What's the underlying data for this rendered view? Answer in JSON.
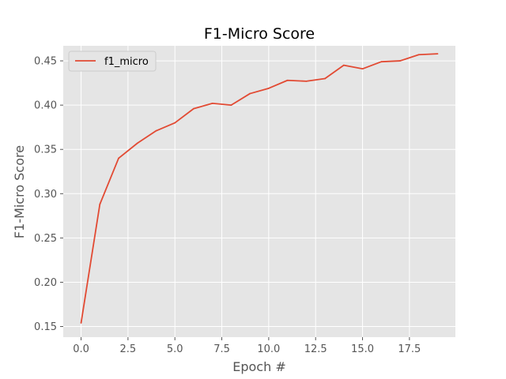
{
  "chart_data": {
    "type": "line",
    "title": "F1-Micro Score",
    "xlabel": "Epoch #",
    "ylabel": "F1-Micro Score",
    "xlim": [
      -0.95,
      19.95
    ],
    "ylim": [
      0.138,
      0.467
    ],
    "xticks": [
      0.0,
      2.5,
      5.0,
      7.5,
      10.0,
      12.5,
      15.0,
      17.5
    ],
    "xtick_labels": [
      "0.0",
      "2.5",
      "5.0",
      "7.5",
      "10.0",
      "12.5",
      "15.0",
      "17.5"
    ],
    "yticks": [
      0.15,
      0.2,
      0.25,
      0.3,
      0.35,
      0.4,
      0.45
    ],
    "ytick_labels": [
      "0.15",
      "0.20",
      "0.25",
      "0.30",
      "0.35",
      "0.40",
      "0.45"
    ],
    "grid": true,
    "legend_position": "top-left",
    "colors": {
      "background": "#e5e5e5",
      "grid": "#ffffff",
      "line": "#e24a33"
    },
    "series": [
      {
        "name": "f1_micro",
        "x": [
          0,
          1,
          2,
          3,
          4,
          5,
          6,
          7,
          8,
          9,
          10,
          11,
          12,
          13,
          14,
          15,
          16,
          17,
          18,
          19
        ],
        "values": [
          0.154,
          0.288,
          0.34,
          0.357,
          0.371,
          0.38,
          0.396,
          0.402,
          0.4,
          0.413,
          0.419,
          0.428,
          0.427,
          0.43,
          0.445,
          0.441,
          0.449,
          0.45,
          0.457,
          0.458
        ]
      }
    ]
  }
}
